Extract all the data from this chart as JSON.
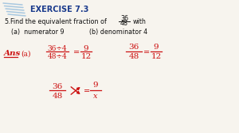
{
  "bg_color": "#f7f4ee",
  "header_color": "#1a3a8c",
  "header_text": "EXERCISE 7.3",
  "question_number": "5.",
  "question_text": "Find the equivalent fraction of",
  "fraction_num": "36",
  "fraction_den": "48",
  "question_end": "with",
  "part_a": "(a)  numerator 9",
  "part_b": "(b) denominator 4",
  "ans_color": "#cc1111",
  "body_text_color": "#111111",
  "notebook_lines_color": "#a8c8e0",
  "figwidth": 3.0,
  "figheight": 1.68,
  "dpi": 100
}
